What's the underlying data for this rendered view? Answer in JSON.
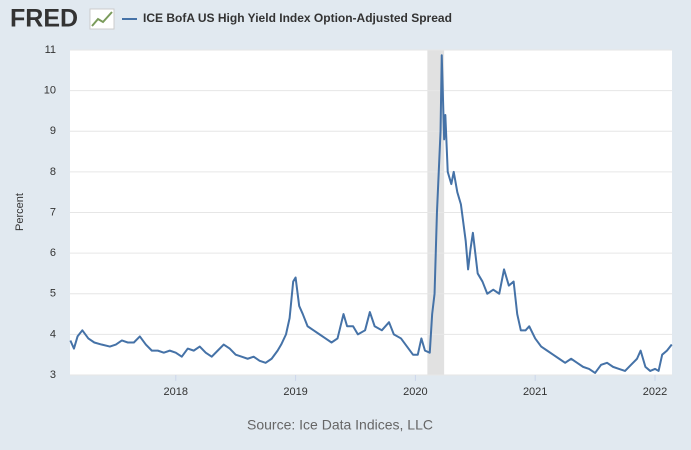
{
  "brand": "FRED",
  "chart_data": {
    "type": "line",
    "ylabel": "Percent",
    "source": "Source: Ice Data Indices, LLC",
    "xlim": [
      2017.117,
      2022.142
    ],
    "xticks": [
      2018,
      2019,
      2020,
      2021,
      2022
    ],
    "ylim": [
      3,
      11
    ],
    "yticks": [
      3,
      4,
      5,
      6,
      7,
      8,
      9,
      10,
      11
    ],
    "grid": true,
    "shading": [
      2020.1,
      2020.24
    ],
    "x": [
      2017.12,
      2017.15,
      2017.18,
      2017.22,
      2017.27,
      2017.32,
      2017.38,
      2017.45,
      2017.5,
      2017.55,
      2017.6,
      2017.65,
      2017.7,
      2017.75,
      2017.8,
      2017.85,
      2017.9,
      2017.95,
      2018.0,
      2018.05,
      2018.1,
      2018.15,
      2018.2,
      2018.25,
      2018.3,
      2018.35,
      2018.4,
      2018.45,
      2018.5,
      2018.55,
      2018.6,
      2018.65,
      2018.7,
      2018.75,
      2018.8,
      2018.85,
      2018.88,
      2018.92,
      2018.95,
      2018.98,
      2019.0,
      2019.03,
      2019.06,
      2019.1,
      2019.15,
      2019.2,
      2019.25,
      2019.3,
      2019.35,
      2019.4,
      2019.43,
      2019.48,
      2019.52,
      2019.58,
      2019.62,
      2019.66,
      2019.72,
      2019.78,
      2019.82,
      2019.88,
      2019.93,
      2019.98,
      2020.02,
      2020.05,
      2020.08,
      2020.12,
      2020.14,
      2020.16,
      2020.18,
      2020.21,
      2020.22,
      2020.24,
      2020.25,
      2020.27,
      2020.3,
      2020.32,
      2020.35,
      2020.38,
      2020.42,
      2020.44,
      2020.46,
      2020.48,
      2020.52,
      2020.56,
      2020.6,
      2020.65,
      2020.7,
      2020.74,
      2020.78,
      2020.82,
      2020.85,
      2020.88,
      2020.92,
      2020.95,
      2021.0,
      2021.05,
      2021.1,
      2021.15,
      2021.2,
      2021.25,
      2021.3,
      2021.35,
      2021.4,
      2021.45,
      2021.5,
      2021.55,
      2021.6,
      2021.65,
      2021.7,
      2021.75,
      2021.8,
      2021.85,
      2021.88,
      2021.92,
      2021.96,
      2022.0,
      2022.03,
      2022.06,
      2022.1,
      2022.14
    ],
    "series": [
      {
        "name": "ICE BofA US High Yield Index Option-Adjusted Spread",
        "color": "#4572a7",
        "values": [
          3.85,
          3.65,
          3.95,
          4.1,
          3.9,
          3.8,
          3.75,
          3.7,
          3.75,
          3.85,
          3.8,
          3.8,
          3.95,
          3.75,
          3.6,
          3.6,
          3.55,
          3.6,
          3.55,
          3.45,
          3.65,
          3.6,
          3.7,
          3.55,
          3.45,
          3.6,
          3.75,
          3.65,
          3.5,
          3.45,
          3.4,
          3.45,
          3.35,
          3.3,
          3.4,
          3.6,
          3.75,
          4.0,
          4.4,
          5.3,
          5.4,
          4.7,
          4.5,
          4.2,
          4.1,
          4.0,
          3.9,
          3.8,
          3.9,
          4.5,
          4.2,
          4.2,
          4.0,
          4.1,
          4.55,
          4.2,
          4.1,
          4.3,
          4.0,
          3.9,
          3.7,
          3.5,
          3.5,
          3.9,
          3.6,
          3.55,
          4.5,
          5.0,
          7.0,
          9.0,
          10.87,
          8.8,
          9.4,
          8.0,
          7.7,
          8.0,
          7.5,
          7.2,
          6.3,
          5.6,
          6.1,
          6.5,
          5.5,
          5.3,
          5.0,
          5.1,
          5.0,
          5.6,
          5.2,
          5.3,
          4.5,
          4.1,
          4.1,
          4.2,
          3.9,
          3.7,
          3.6,
          3.5,
          3.4,
          3.3,
          3.4,
          3.3,
          3.2,
          3.15,
          3.05,
          3.25,
          3.3,
          3.2,
          3.15,
          3.1,
          3.25,
          3.4,
          3.6,
          3.2,
          3.1,
          3.15,
          3.1,
          3.5,
          3.6,
          3.75
        ]
      }
    ]
  }
}
